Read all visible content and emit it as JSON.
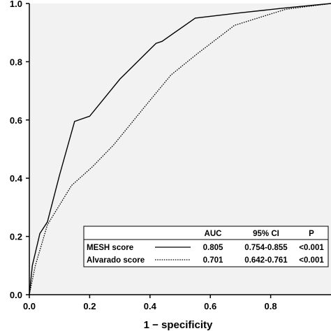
{
  "chart_data": {
    "type": "line",
    "title": "",
    "xlabel": "1 − specificity",
    "ylabel": "",
    "xlim": [
      0,
      1
    ],
    "ylim": [
      0,
      1
    ],
    "x_ticks": [
      "0.0",
      "0.2",
      "0.4",
      "0.6",
      "0.8"
    ],
    "y_ticks": [
      "0.0",
      "0.2",
      "0.4",
      "0.6",
      "0.8",
      "1.0"
    ],
    "grid": false,
    "plot_background": "#f2f2f2",
    "series": [
      {
        "name": "MESH score",
        "style": "solid",
        "color": "#000000",
        "points": [
          [
            0.0,
            0.0
          ],
          [
            0.01,
            0.1
          ],
          [
            0.035,
            0.21
          ],
          [
            0.06,
            0.25
          ],
          [
            0.1,
            0.41
          ],
          [
            0.15,
            0.595
          ],
          [
            0.2,
            0.613
          ],
          [
            0.3,
            0.74
          ],
          [
            0.42,
            0.863
          ],
          [
            0.44,
            0.87
          ],
          [
            0.55,
            0.95
          ],
          [
            0.7,
            0.968
          ],
          [
            0.85,
            0.985
          ],
          [
            1.0,
            1.0
          ]
        ]
      },
      {
        "name": "Alvarado score",
        "style": "dotted",
        "color": "#000000",
        "points": [
          [
            0.0,
            0.0
          ],
          [
            0.02,
            0.1
          ],
          [
            0.06,
            0.24
          ],
          [
            0.14,
            0.375
          ],
          [
            0.21,
            0.44
          ],
          [
            0.28,
            0.515
          ],
          [
            0.39,
            0.655
          ],
          [
            0.47,
            0.755
          ],
          [
            0.56,
            0.83
          ],
          [
            0.68,
            0.925
          ],
          [
            0.85,
            0.98
          ],
          [
            1.0,
            1.0
          ]
        ]
      }
    ],
    "legend": {
      "placement": "bottom-right",
      "headers": [
        "AUC",
        "95% CI",
        "P"
      ],
      "rows": [
        {
          "name": "MESH score",
          "auc": "0.805",
          "ci": "0.754-0.855",
          "p": "<0.001"
        },
        {
          "name": "Alvarado score",
          "auc": "0.701",
          "ci": "0.642-0.761",
          "p": "<0.001"
        }
      ]
    }
  }
}
